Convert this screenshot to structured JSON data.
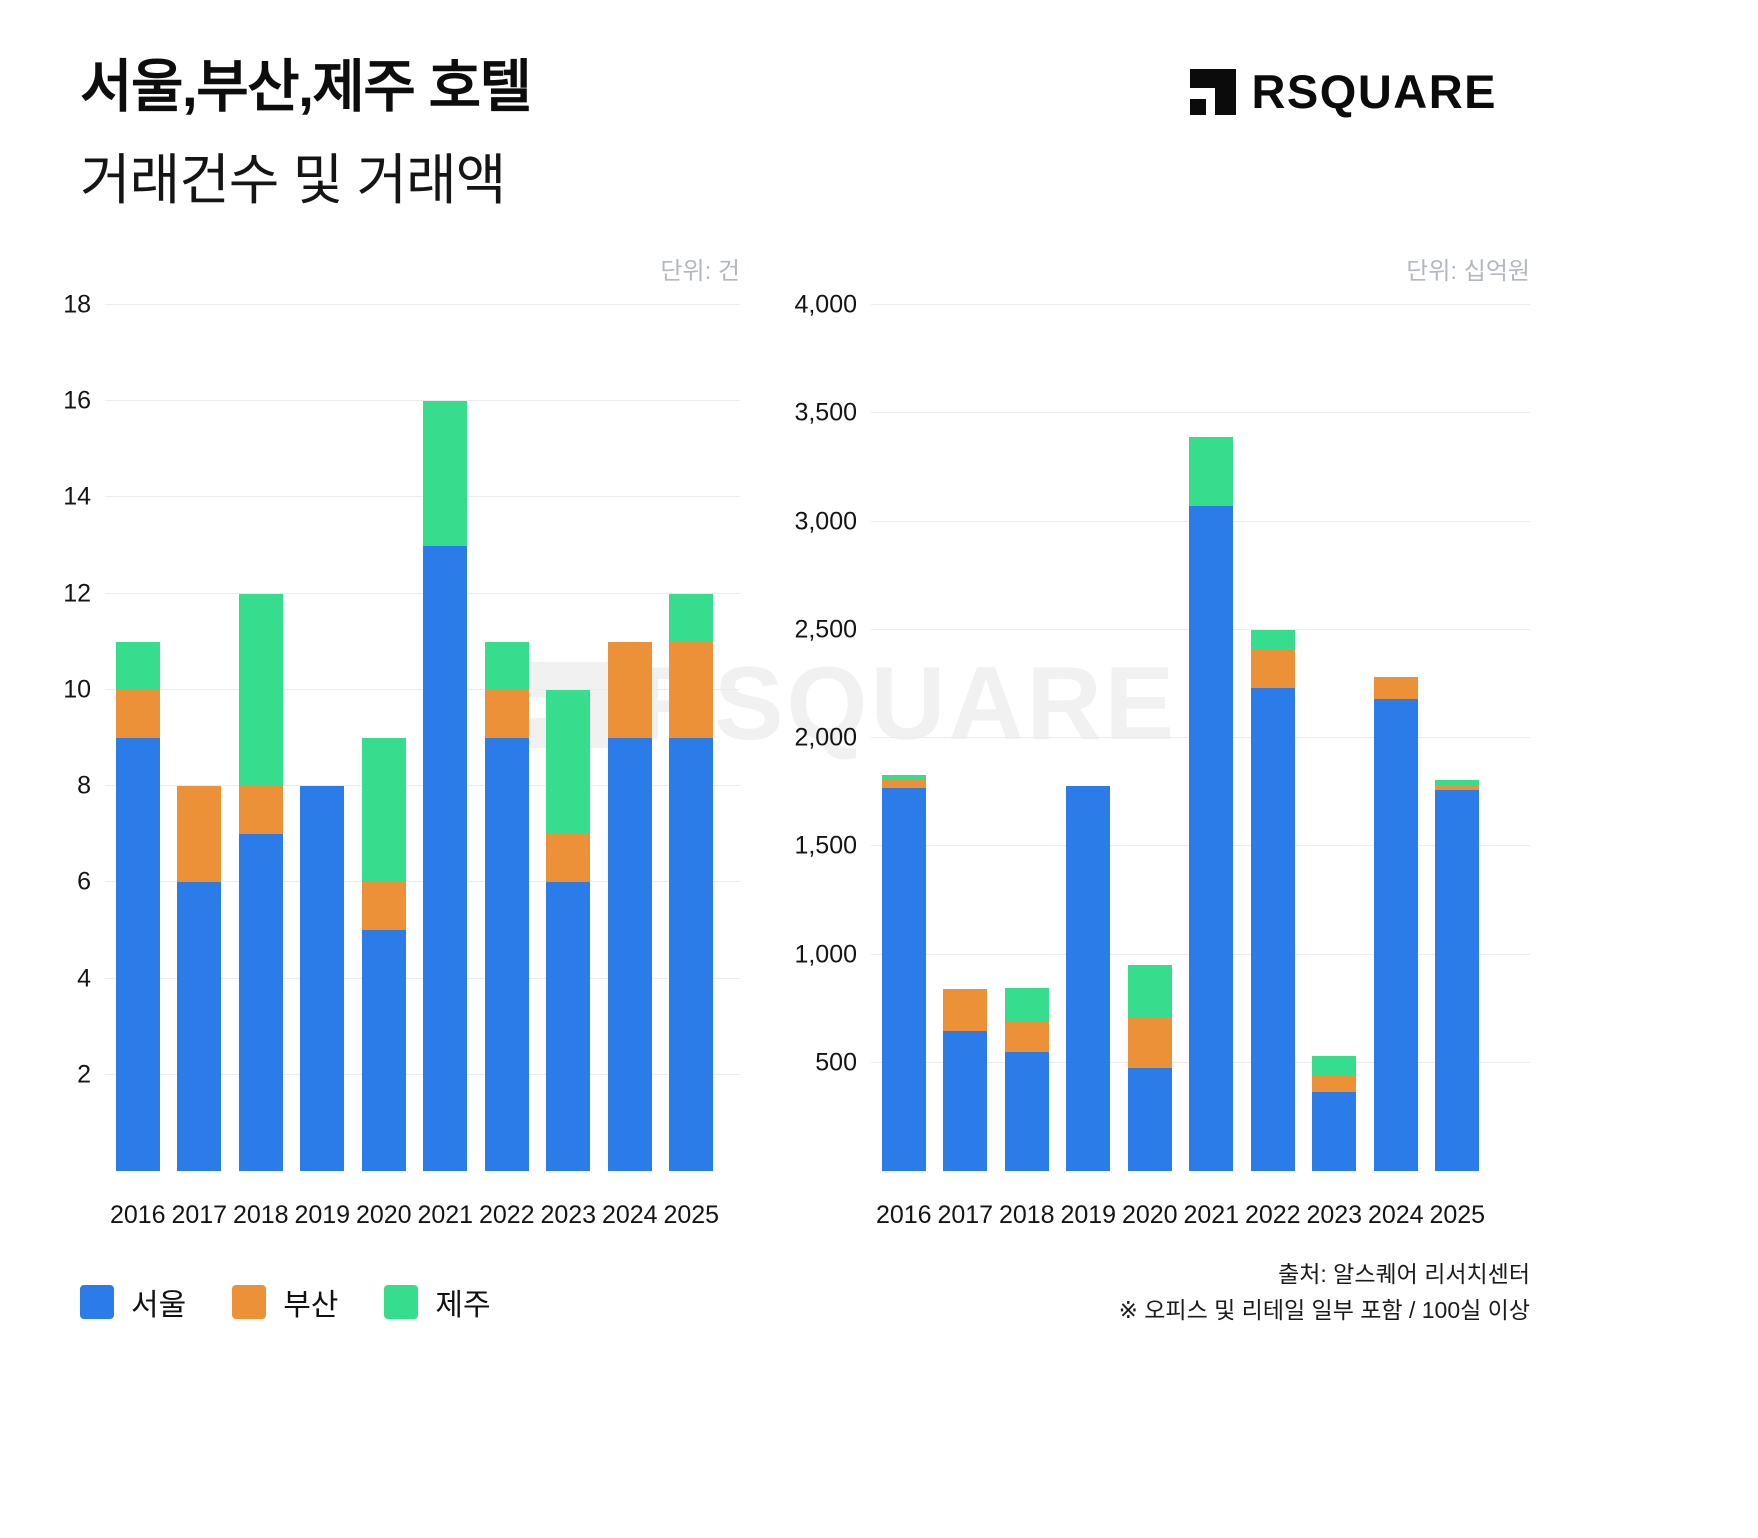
{
  "header": {
    "title_line1": "서울,부산,제주 호텔",
    "title_line2": "거래건수 및 거래액",
    "brand": "RSQUARE"
  },
  "watermark": "RSQUARE",
  "legend": [
    {
      "label": "서울",
      "color": "#2B7CE9"
    },
    {
      "label": "부산",
      "color": "#EC9138"
    },
    {
      "label": "제주",
      "color": "#35DD8C"
    }
  ],
  "footer": {
    "source": "출처: 알스퀘어 리서치센터",
    "note": "※ 오피스 및 리테일 일부 포함 / 100실 이상"
  },
  "colors": {
    "seoul": "#2B7CE9",
    "busan": "#EC9138",
    "jeju": "#35DD8C",
    "grid": "#ECECEC",
    "unit_text": "#B2B8BF"
  },
  "chart_data": [
    {
      "type": "bar",
      "stacked": true,
      "title": "거래건수",
      "unit_label": "단위: 건",
      "categories": [
        "2016",
        "2017",
        "2018",
        "2019",
        "2020",
        "2021",
        "2022",
        "2023",
        "2024",
        "2025"
      ],
      "series": [
        {
          "name": "서울",
          "color": "#2B7CE9",
          "values": [
            9,
            6,
            7,
            8,
            5,
            13,
            9,
            6,
            9,
            9
          ]
        },
        {
          "name": "부산",
          "color": "#EC9138",
          "values": [
            1,
            2,
            1,
            0,
            1,
            0,
            1,
            1,
            2,
            2
          ]
        },
        {
          "name": "제주",
          "color": "#35DD8C",
          "values": [
            1,
            0,
            4,
            0,
            3,
            3,
            1,
            3,
            0,
            1
          ]
        }
      ],
      "totals": [
        11,
        8,
        12,
        8,
        9,
        16,
        11,
        10,
        11,
        12
      ],
      "ylim": [
        0,
        18
      ],
      "yticks": [
        2,
        4,
        6,
        8,
        10,
        12,
        14,
        16,
        18
      ],
      "ytick_labels": [
        "2",
        "4",
        "6",
        "8",
        "10",
        "12",
        "14",
        "16",
        "18"
      ],
      "grid": true,
      "legend_position": "bottom-left"
    },
    {
      "type": "bar",
      "stacked": true,
      "title": "거래액",
      "unit_label": "단위: 십억원",
      "categories": [
        "2016",
        "2017",
        "2018",
        "2019",
        "2020",
        "2021",
        "2022",
        "2023",
        "2024",
        "2025"
      ],
      "series": [
        {
          "name": "서울",
          "color": "#2B7CE9",
          "values": [
            1770,
            645,
            550,
            1780,
            475,
            3070,
            2230,
            365,
            2180,
            1760
          ]
        },
        {
          "name": "부산",
          "color": "#EC9138",
          "values": [
            40,
            195,
            140,
            0,
            230,
            0,
            180,
            80,
            100,
            25
          ]
        },
        {
          "name": "제주",
          "color": "#35DD8C",
          "values": [
            20,
            0,
            155,
            0,
            245,
            320,
            90,
            85,
            0,
            20
          ]
        }
      ],
      "totals": [
        1830,
        840,
        845,
        1780,
        950,
        3390,
        2500,
        530,
        2280,
        1805
      ],
      "ylim": [
        0,
        4000
      ],
      "yticks": [
        500,
        1000,
        1500,
        2000,
        2500,
        3000,
        3500,
        4000
      ],
      "ytick_labels": [
        "500",
        "1,000",
        "1,500",
        "2,000",
        "2,500",
        "3,000",
        "3,500",
        "4,000"
      ],
      "grid": true,
      "legend_position": "bottom-left"
    }
  ]
}
